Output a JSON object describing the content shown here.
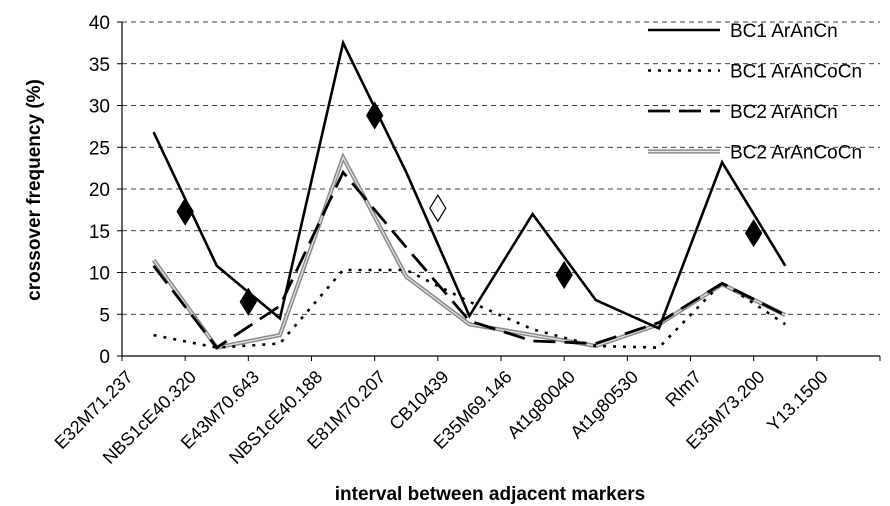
{
  "chart_data": {
    "type": "line",
    "xlabel": "interval between adjacent markers",
    "ylabel": "crossover frequency (%)",
    "ylim": [
      0,
      40
    ],
    "yticks": [
      0,
      5,
      10,
      15,
      20,
      25,
      30,
      35,
      40
    ],
    "grid": "horizontal dashed",
    "legend_position": "top-right",
    "categories": [
      "E32M71.237",
      "NBS1cE40.320",
      "E43M70.643",
      "NBS1cE40.188",
      "E81M70.207",
      "CB10439",
      "E35M69.146",
      "At1g80040",
      "At1g80530",
      "Rlm7",
      "E35M73.200",
      "Y13.1500"
    ],
    "x": [
      0.5,
      1.5,
      2.5,
      3.5,
      4.5,
      5.5,
      6.5,
      7.5,
      8.5,
      9.5,
      10.5
    ],
    "series": [
      {
        "name": "BC1 ArAnCn",
        "style": "solid",
        "color": "#000000",
        "y": [
          26.8,
          10.8,
          4.5,
          37.5,
          22.0,
          4.8,
          17.0,
          6.7,
          3.3,
          23.2,
          10.8
        ]
      },
      {
        "name": "BC1 ArAnCoCn",
        "style": "dotted",
        "color": "#000000",
        "y": [
          2.5,
          1.0,
          1.5,
          10.3,
          10.3,
          6.5,
          3.2,
          1.2,
          1.0,
          8.8,
          3.8
        ]
      },
      {
        "name": "BC2 ArAnCn",
        "style": "dashed",
        "color": "#000000",
        "y": [
          10.8,
          1.0,
          6.0,
          22.0,
          13.0,
          4.2,
          1.8,
          1.5,
          4.0,
          8.7,
          4.9
        ]
      },
      {
        "name": "BC2 ArAnCoCn",
        "style": "double-gray",
        "color": "#888888",
        "y": [
          11.5,
          1.0,
          2.5,
          23.8,
          9.5,
          3.8,
          2.5,
          1.2,
          3.8,
          8.6,
          4.9
        ]
      }
    ],
    "markers": [
      {
        "x": 1.0,
        "y": 17.3,
        "filled": true
      },
      {
        "x": 2.0,
        "y": 6.5,
        "filled": true
      },
      {
        "x": 4.0,
        "y": 28.8,
        "filled": true
      },
      {
        "x": 5.0,
        "y": 17.7,
        "filled": false
      },
      {
        "x": 7.0,
        "y": 9.7,
        "filled": true
      },
      {
        "x": 10.0,
        "y": 14.7,
        "filled": true
      }
    ]
  }
}
